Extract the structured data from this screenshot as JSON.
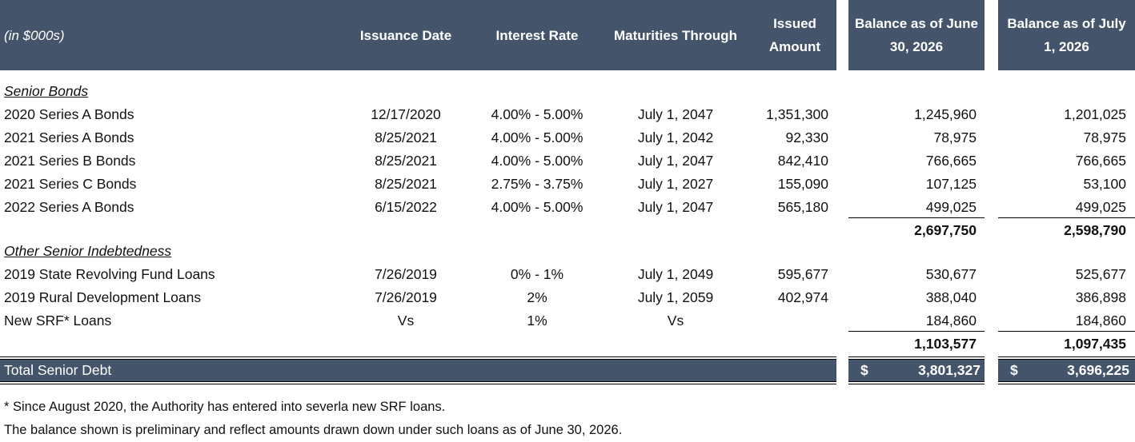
{
  "header": {
    "unit": "(in $000s)",
    "columns": {
      "date": "Issuance Date",
      "rate": "Interest Rate",
      "maturity": "Maturities Through",
      "issued": "Issued Amount",
      "bal1": "Balance as of June 30, 2026",
      "bal2": "Balance as of July 1, 2026"
    }
  },
  "sections": [
    {
      "title": "Senior Bonds",
      "rows": [
        {
          "name": "2020 Series A Bonds",
          "date": "12/17/2020",
          "rate": "4.00% - 5.00%",
          "maturity": "July 1, 2047",
          "issued": "1,351,300",
          "bal1": "1,245,960",
          "bal2": "1,201,025"
        },
        {
          "name": "2021 Series A Bonds",
          "date": "8/25/2021",
          "rate": "4.00% - 5.00%",
          "maturity": "July 1, 2042",
          "issued": "92,330",
          "bal1": "78,975",
          "bal2": "78,975"
        },
        {
          "name": "2021 Series B Bonds",
          "date": "8/25/2021",
          "rate": "4.00% - 5.00%",
          "maturity": "July 1, 2047",
          "issued": "842,410",
          "bal1": "766,665",
          "bal2": "766,665"
        },
        {
          "name": "2021 Series C Bonds",
          "date": "8/25/2021",
          "rate": "2.75% - 3.75%",
          "maturity": "July 1, 2027",
          "issued": "155,090",
          "bal1": "107,125",
          "bal2": "53,100"
        },
        {
          "name": "2022 Series A Bonds",
          "date": "6/15/2022",
          "rate": "4.00% - 5.00%",
          "maturity": "July 1, 2047",
          "issued": "565,180",
          "bal1": "499,025",
          "bal2": "499,025"
        }
      ],
      "subtotal": {
        "bal1": "2,697,750",
        "bal2": "2,598,790"
      }
    },
    {
      "title": "Other Senior Indebtedness",
      "rows": [
        {
          "name": "2019 State Revolving Fund Loans",
          "date": "7/26/2019",
          "rate": "0% - 1%",
          "maturity": "July 1, 2049",
          "issued": "595,677",
          "bal1": "530,677",
          "bal2": "525,677"
        },
        {
          "name": "2019 Rural Development Loans",
          "date": "7/26/2019",
          "rate": "2%",
          "maturity": "July 1, 2059",
          "issued": "402,974",
          "bal1": "388,040",
          "bal2": "386,898"
        },
        {
          "name": "New SRF* Loans",
          "date": "Vs",
          "rate": "1%",
          "maturity": "Vs",
          "bal1": "184,860",
          "bal2": "184,860"
        }
      ],
      "subtotal": {
        "bal1": "1,103,577",
        "bal2": "1,097,435"
      }
    }
  ],
  "total": {
    "label": "Total Senior Debt",
    "currency": "$",
    "bal1": "3,801,327",
    "bal2": "3,696,225"
  },
  "footnotes": [
    "* Since August 2020, the Authority has entered into severla new SRF loans.",
    "The balance shown is preliminary and reflect amounts drawn down under such loans as of June 30, 2026."
  ]
}
